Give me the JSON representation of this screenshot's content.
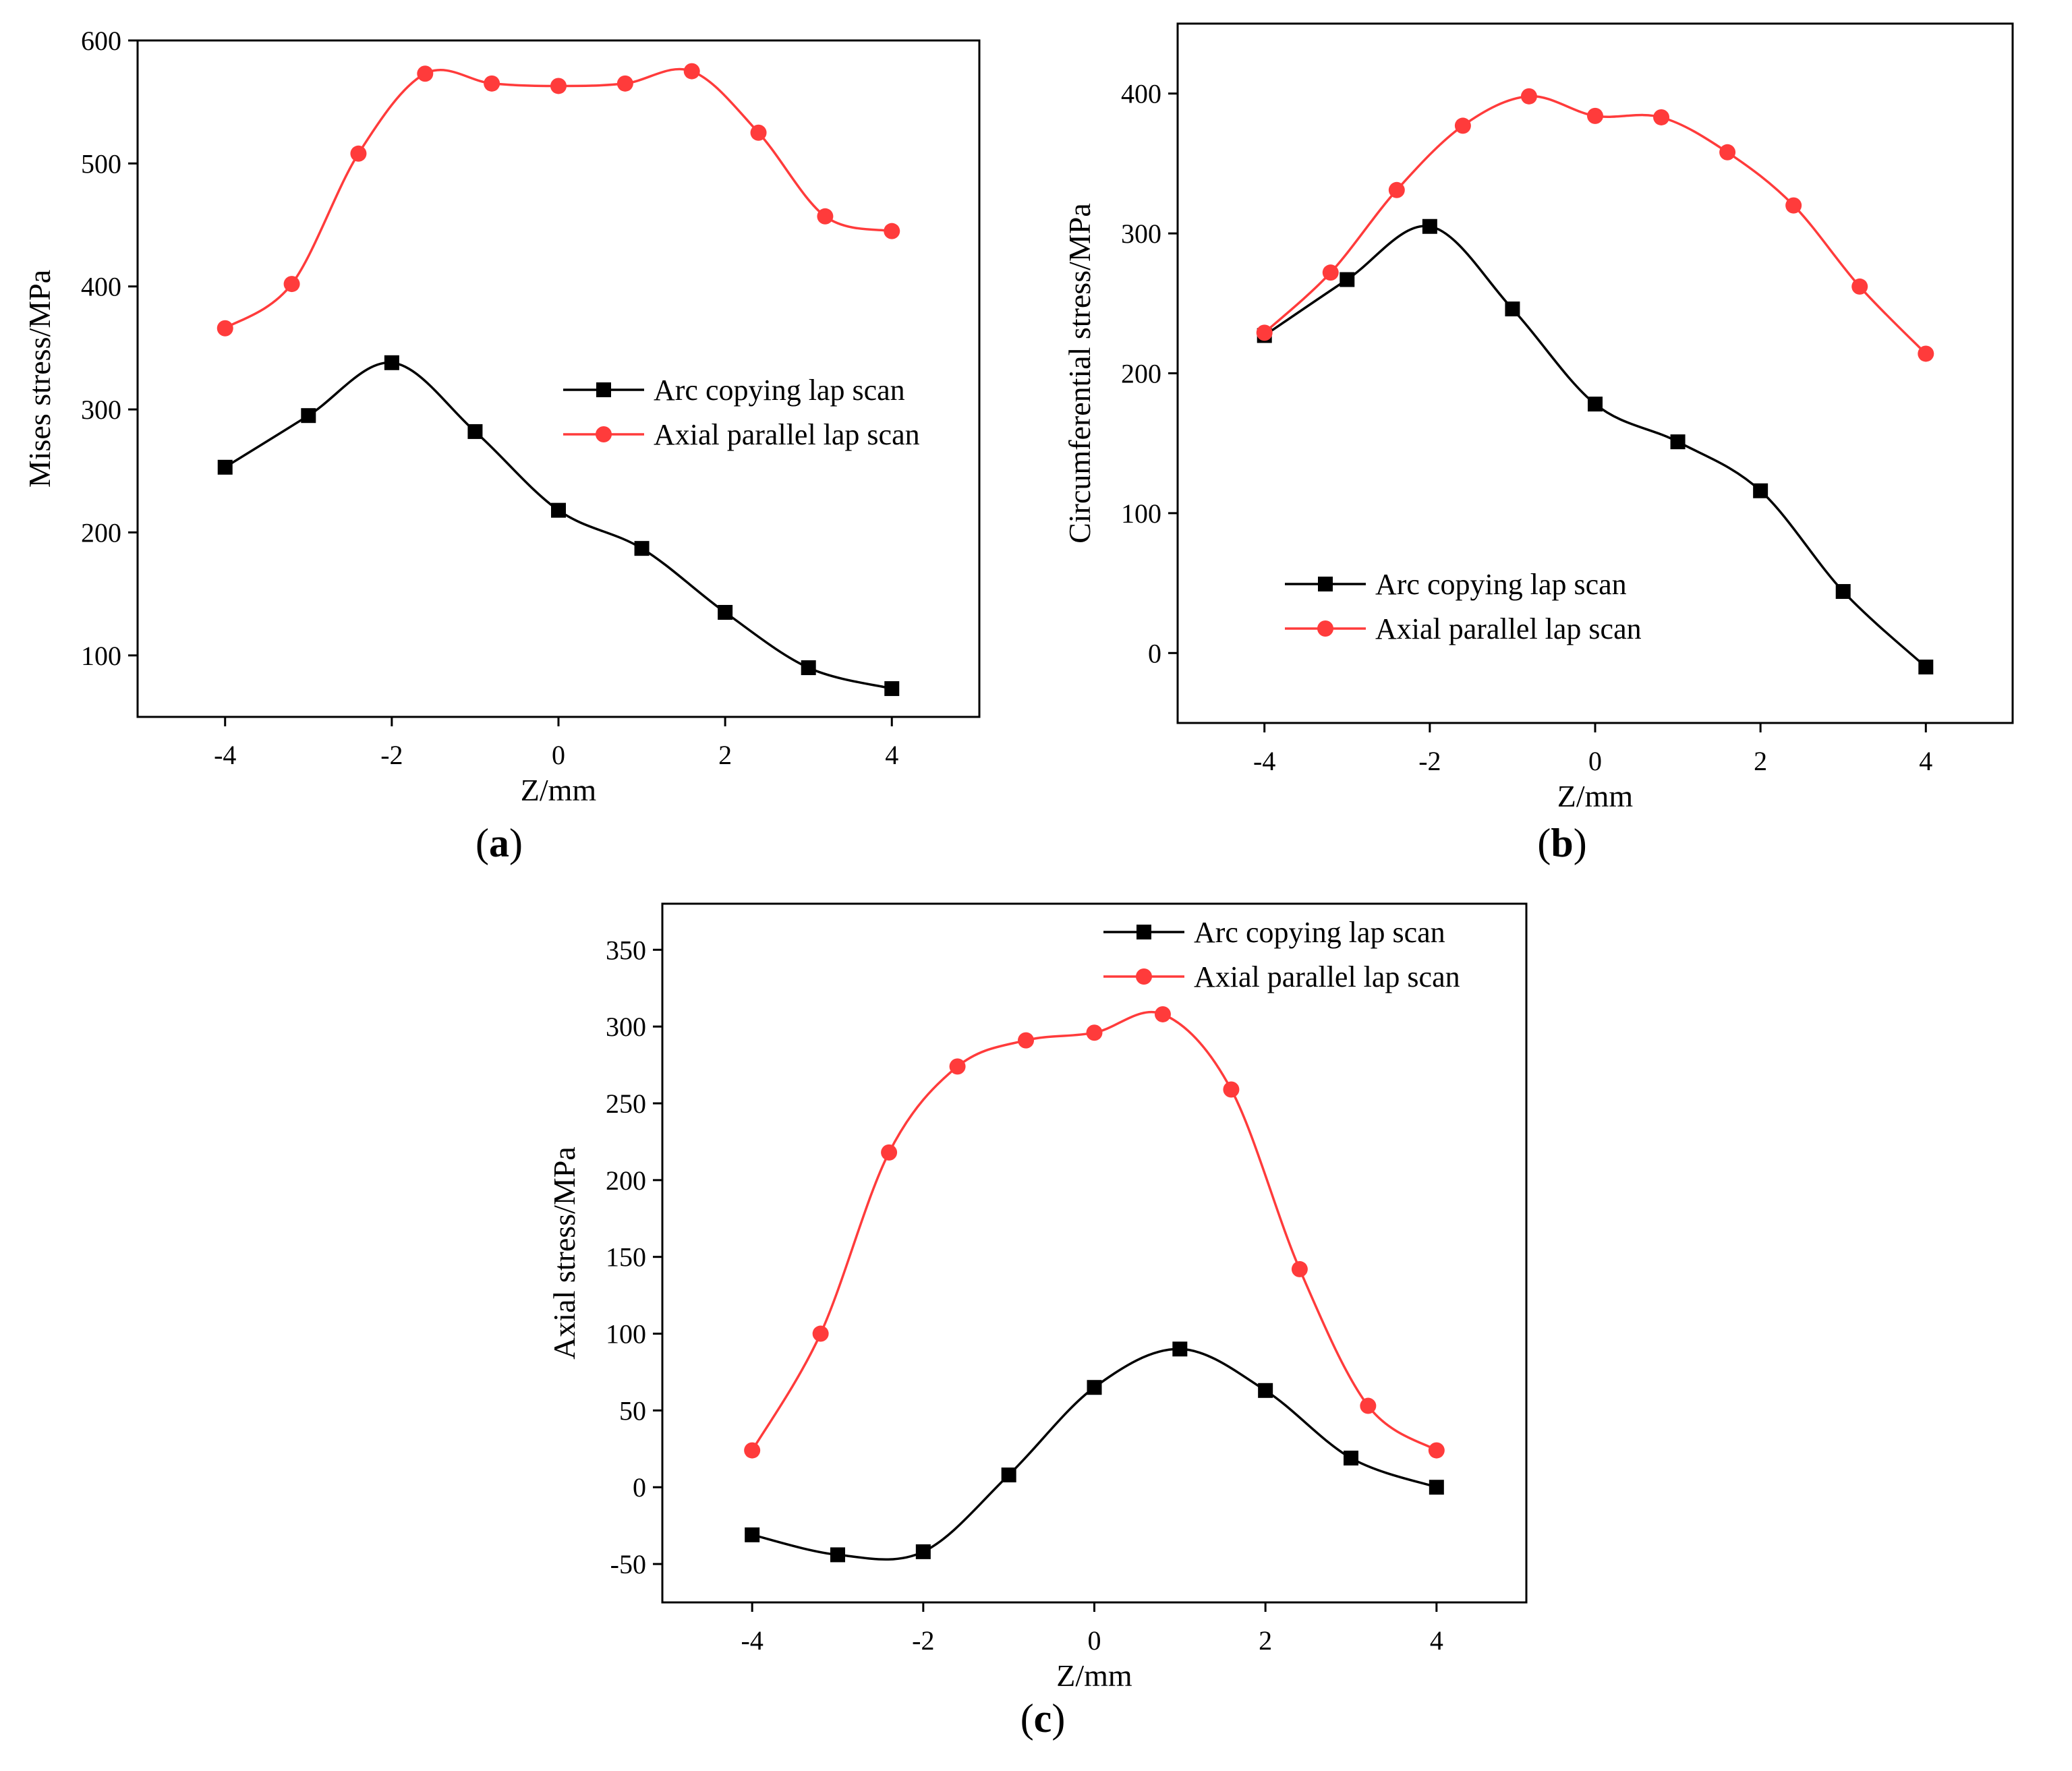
{
  "figure": {
    "background": "#ffffff"
  },
  "chart_data": [
    {
      "id": "a",
      "type": "line",
      "panel_label": "(a)",
      "panel_label_text": "a",
      "xlabel": "Z/mm",
      "ylabel": "Mises stress/MPa",
      "xlim": [
        -5.05,
        5.05
      ],
      "ylim": [
        50,
        600
      ],
      "xticks": [
        -4,
        -2,
        0,
        2,
        4
      ],
      "yticks": [
        100,
        200,
        300,
        400,
        500,
        600
      ],
      "legend_position": "center-right",
      "series": [
        {
          "name": "Arc copying lap scan",
          "marker": "square",
          "color": "#000000",
          "x": [
            -4,
            -3,
            -2,
            -1,
            0,
            1,
            2,
            3,
            4
          ],
          "y": [
            253,
            295,
            338,
            282,
            218,
            187,
            135,
            90,
            73
          ]
        },
        {
          "name": "Axial parallel lap scan",
          "marker": "circle",
          "color": "#ff3b3b",
          "x": [
            -4,
            -3.2,
            -2.4,
            -1.6,
            -0.8,
            0,
            0.8,
            1.6,
            2.4,
            3.2,
            4
          ],
          "y": [
            366,
            402,
            508,
            573,
            565,
            563,
            565,
            575,
            525,
            457,
            445
          ]
        }
      ]
    },
    {
      "id": "b",
      "type": "line",
      "panel_label": "(b)",
      "panel_label_text": "b",
      "xlabel": "Z/mm",
      "ylabel": "Circumferential stress/MPa",
      "xlim": [
        -5.05,
        5.05
      ],
      "ylim": [
        -50,
        450
      ],
      "xticks": [
        -4,
        -2,
        0,
        2,
        4
      ],
      "yticks": [
        0,
        100,
        200,
        300,
        400
      ],
      "legend_position": "bottom-left",
      "series": [
        {
          "name": "Arc copying lap scan",
          "marker": "square",
          "color": "#000000",
          "x": [
            -4,
            -3,
            -2,
            -1,
            0,
            1,
            2,
            3,
            4
          ],
          "y": [
            227,
            267,
            305,
            246,
            178,
            151,
            116,
            44,
            -10
          ]
        },
        {
          "name": "Axial parallel lap scan",
          "marker": "circle",
          "color": "#ff3b3b",
          "x": [
            -4,
            -3.2,
            -2.4,
            -1.6,
            -0.8,
            0,
            0.8,
            1.6,
            2.4,
            3.2,
            4
          ],
          "y": [
            229,
            272,
            331,
            377,
            398,
            384,
            383,
            358,
            320,
            262,
            214
          ]
        }
      ]
    },
    {
      "id": "c",
      "type": "line",
      "panel_label": "(c)",
      "panel_label_text": "c",
      "xlabel": "Z/mm",
      "ylabel": "Axial stress/MPa",
      "xlim": [
        -5.05,
        5.05
      ],
      "ylim": [
        -75,
        380
      ],
      "xticks": [
        -4,
        -2,
        0,
        2,
        4
      ],
      "yticks": [
        -50,
        0,
        50,
        100,
        150,
        200,
        250,
        300,
        350
      ],
      "legend_position": "top-right",
      "series": [
        {
          "name": "Arc copying lap scan",
          "marker": "square",
          "color": "#000000",
          "x": [
            -4,
            -3,
            -2,
            -1,
            0,
            1,
            2,
            3,
            4
          ],
          "y": [
            -31,
            -44,
            -42,
            8,
            65,
            90,
            63,
            19,
            0
          ]
        },
        {
          "name": "Axial parallel lap scan",
          "marker": "circle",
          "color": "#ff3b3b",
          "x": [
            -4,
            -3.2,
            -2.4,
            -1.6,
            -0.8,
            0,
            0.8,
            1.6,
            2.4,
            3.2,
            4
          ],
          "y": [
            24,
            100,
            218,
            274,
            291,
            296,
            308,
            259,
            142,
            53,
            24
          ]
        }
      ]
    }
  ]
}
